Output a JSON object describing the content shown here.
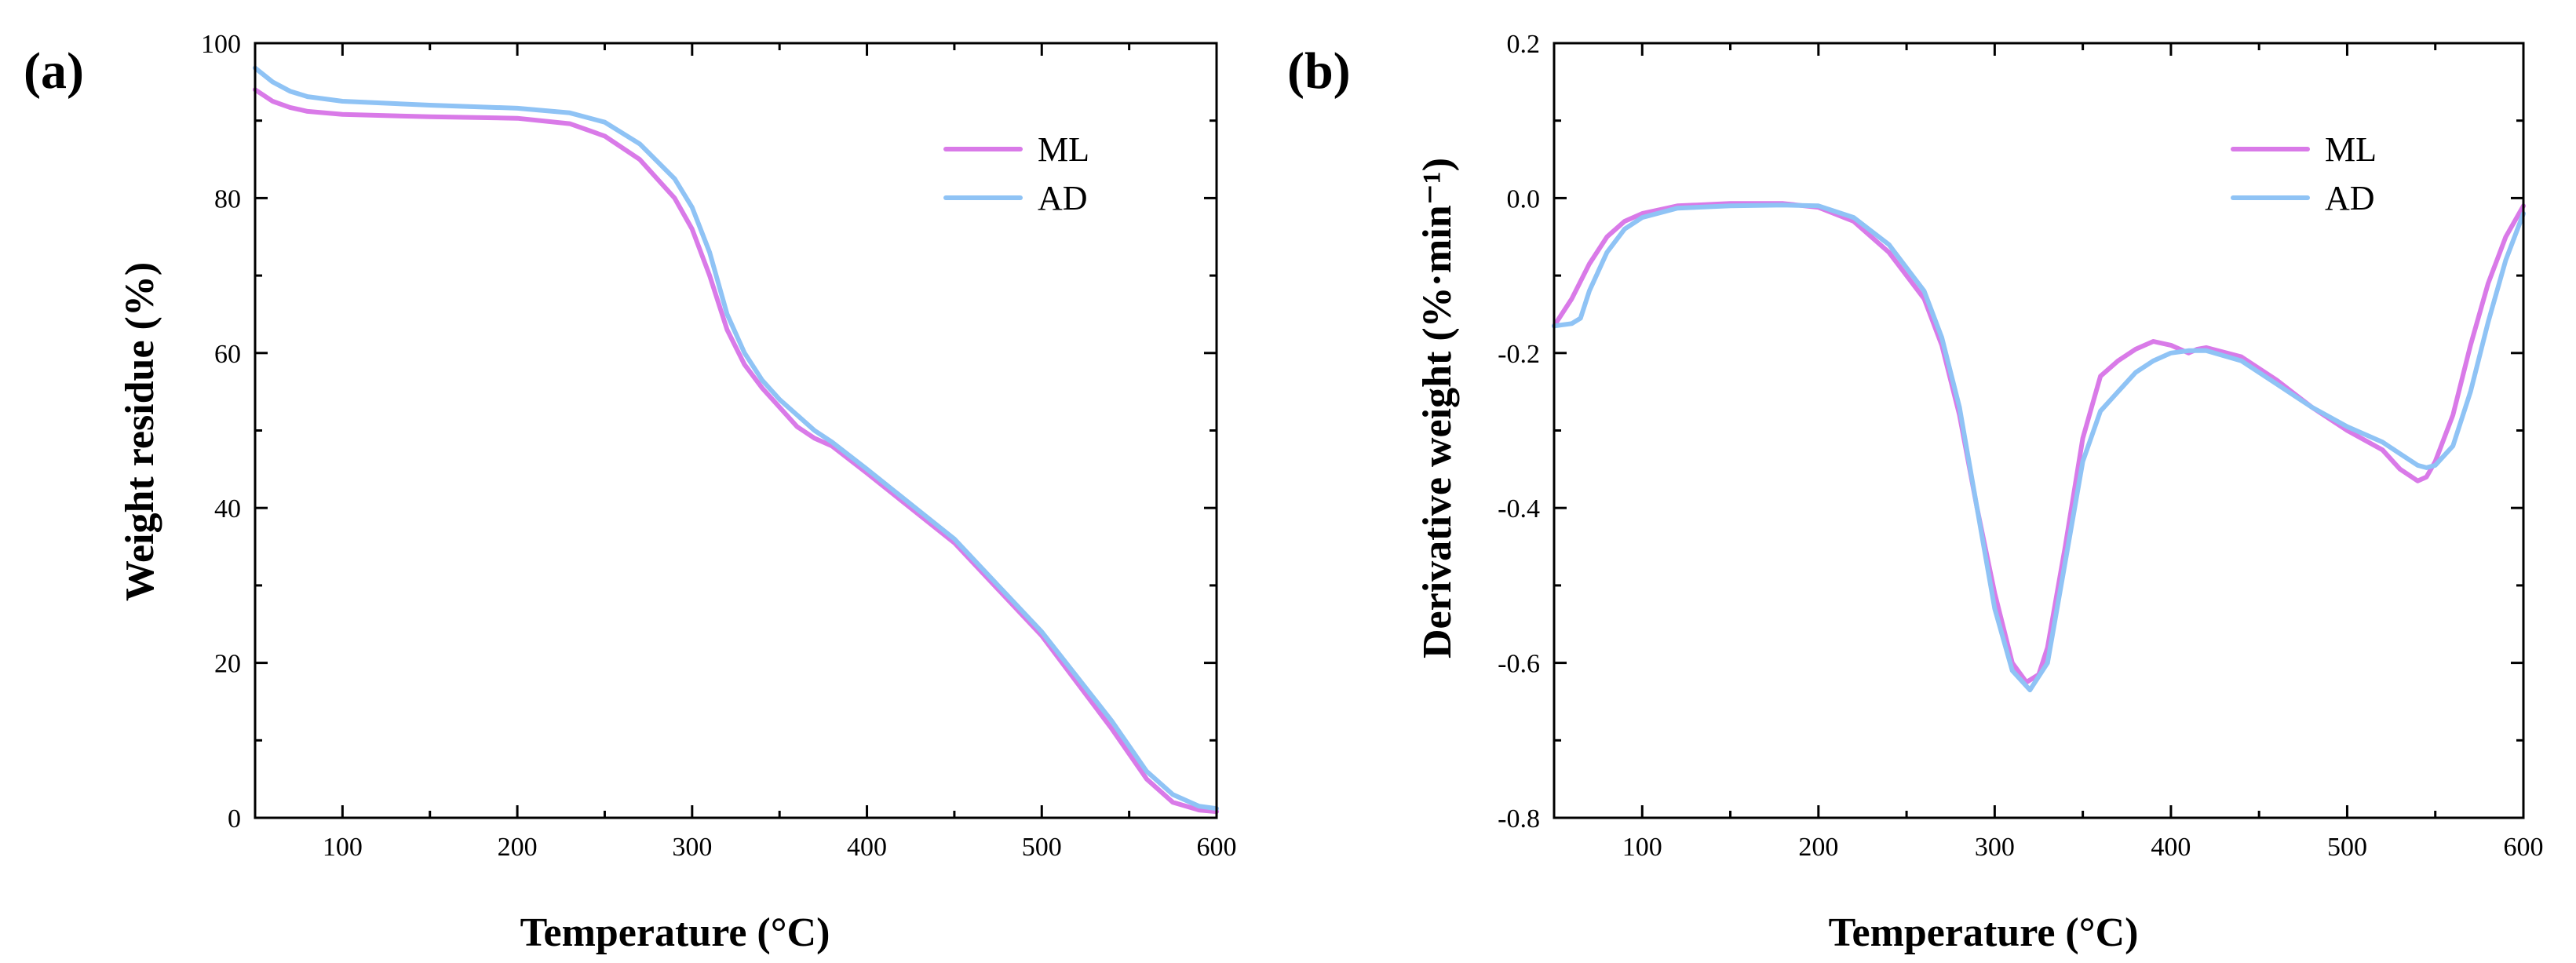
{
  "colors": {
    "ML": "#d97ae8",
    "AD": "#8fc3f5"
  },
  "chart_data": [
    {
      "type": "line",
      "panel_label": "(a)",
      "title": "",
      "xlabel": "Temperature (°C)",
      "ylabel": "Weight residue (%)",
      "xlim": [
        50,
        600
      ],
      "ylim": [
        0,
        100
      ],
      "xticks": [
        100,
        200,
        300,
        400,
        500,
        600
      ],
      "yticks": [
        0,
        20,
        40,
        60,
        80,
        100
      ],
      "ytick_labels": [
        "0",
        "20",
        "40",
        "60",
        "80",
        "100"
      ],
      "legend": [
        "ML",
        "AD"
      ],
      "legend_position": "top-right",
      "series": [
        {
          "name": "ML",
          "x": [
            50,
            60,
            70,
            80,
            100,
            150,
            200,
            230,
            250,
            270,
            290,
            300,
            310,
            320,
            330,
            340,
            350,
            360,
            370,
            380,
            400,
            450,
            500,
            540,
            560,
            575,
            590,
            600
          ],
          "y": [
            94.0,
            92.5,
            91.7,
            91.2,
            90.8,
            90.5,
            90.3,
            89.6,
            88.0,
            85.0,
            80.0,
            76.0,
            70.0,
            63.0,
            58.5,
            55.5,
            53.0,
            50.5,
            49.0,
            48.0,
            44.5,
            35.5,
            23.5,
            11.5,
            5.0,
            2.0,
            1.0,
            0.8
          ]
        },
        {
          "name": "AD",
          "x": [
            50,
            60,
            70,
            80,
            100,
            150,
            200,
            230,
            250,
            270,
            290,
            300,
            310,
            320,
            330,
            340,
            350,
            360,
            370,
            380,
            400,
            450,
            500,
            540,
            560,
            575,
            590,
            600
          ],
          "y": [
            96.8,
            95.0,
            93.8,
            93.1,
            92.5,
            92.0,
            91.6,
            91.0,
            89.8,
            87.0,
            82.5,
            78.8,
            73.0,
            65.0,
            60.0,
            56.5,
            54.0,
            52.0,
            50.0,
            48.5,
            45.0,
            36.0,
            24.0,
            12.5,
            6.0,
            3.0,
            1.5,
            1.2
          ]
        }
      ]
    },
    {
      "type": "line",
      "panel_label": "(b)",
      "title": "",
      "xlabel": "Temperature (°C)",
      "ylabel": "Derivative weight (%·min⁻¹)",
      "xlim": [
        50,
        600
      ],
      "ylim": [
        -0.8,
        0.2
      ],
      "xticks": [
        100,
        200,
        300,
        400,
        500,
        600
      ],
      "yticks": [
        -0.8,
        -0.6,
        -0.4,
        -0.2,
        0.0,
        0.2
      ],
      "ytick_labels": [
        "-0.8",
        "-0.6",
        "-0.4",
        "-0.2",
        "0.0",
        "0.2"
      ],
      "legend": [
        "ML",
        "AD"
      ],
      "legend_position": "top-right",
      "series": [
        {
          "name": "ML",
          "x": [
            50,
            60,
            70,
            80,
            90,
            100,
            120,
            150,
            180,
            200,
            220,
            240,
            260,
            270,
            280,
            290,
            300,
            310,
            318,
            325,
            330,
            340,
            350,
            360,
            370,
            380,
            390,
            400,
            405,
            410,
            415,
            420,
            440,
            460,
            480,
            500,
            520,
            530,
            540,
            545,
            550,
            560,
            570,
            580,
            590,
            600
          ],
          "y": [
            -0.165,
            -0.13,
            -0.085,
            -0.05,
            -0.03,
            -0.02,
            -0.01,
            -0.007,
            -0.007,
            -0.012,
            -0.03,
            -0.07,
            -0.13,
            -0.19,
            -0.28,
            -0.4,
            -0.51,
            -0.6,
            -0.625,
            -0.615,
            -0.58,
            -0.45,
            -0.31,
            -0.23,
            -0.21,
            -0.195,
            -0.185,
            -0.19,
            -0.195,
            -0.2,
            -0.195,
            -0.193,
            -0.205,
            -0.235,
            -0.27,
            -0.3,
            -0.325,
            -0.35,
            -0.365,
            -0.36,
            -0.34,
            -0.28,
            -0.19,
            -0.11,
            -0.05,
            -0.01
          ]
        },
        {
          "name": "AD",
          "x": [
            50,
            60,
            65,
            70,
            80,
            90,
            100,
            120,
            150,
            180,
            200,
            220,
            240,
            260,
            270,
            280,
            290,
            300,
            310,
            320,
            330,
            340,
            350,
            360,
            370,
            380,
            390,
            400,
            410,
            420,
            440,
            460,
            480,
            500,
            520,
            530,
            540,
            545,
            550,
            560,
            570,
            580,
            590,
            600
          ],
          "y": [
            -0.165,
            -0.162,
            -0.155,
            -0.12,
            -0.07,
            -0.04,
            -0.025,
            -0.013,
            -0.01,
            -0.009,
            -0.01,
            -0.025,
            -0.06,
            -0.12,
            -0.18,
            -0.27,
            -0.4,
            -0.53,
            -0.61,
            -0.635,
            -0.6,
            -0.47,
            -0.34,
            -0.275,
            -0.25,
            -0.225,
            -0.21,
            -0.2,
            -0.197,
            -0.197,
            -0.21,
            -0.24,
            -0.27,
            -0.295,
            -0.315,
            -0.33,
            -0.345,
            -0.348,
            -0.345,
            -0.32,
            -0.25,
            -0.16,
            -0.08,
            -0.02
          ]
        }
      ]
    }
  ]
}
